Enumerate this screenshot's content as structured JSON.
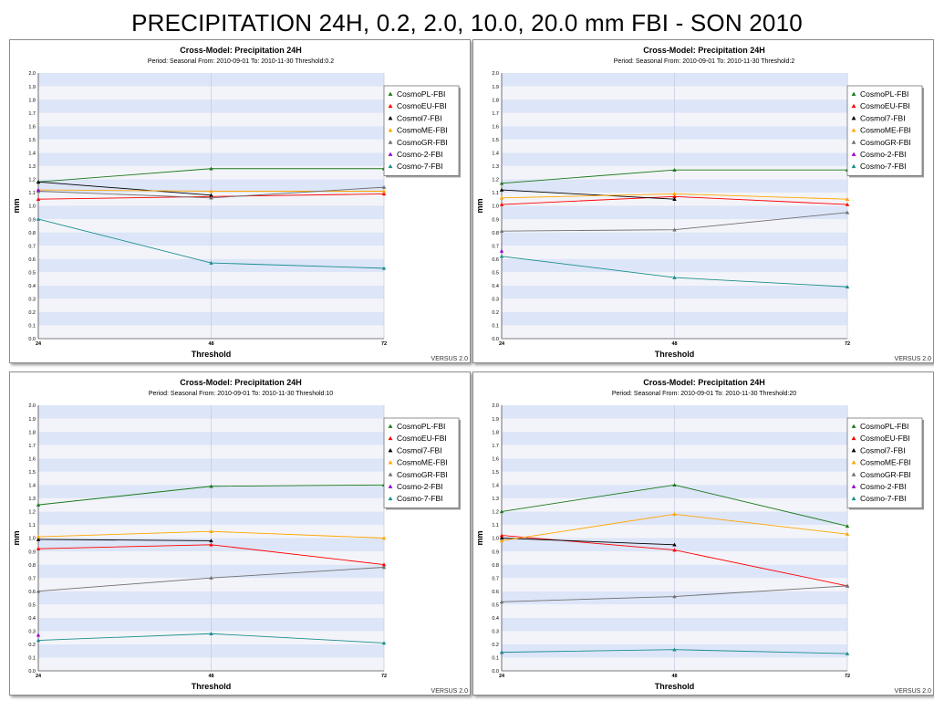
{
  "page": {
    "title": "PRECIPITATION 24H, 0.2, 2.0, 10.0, 20.0 mm FBI - SON 2010"
  },
  "series_styles": [
    {
      "name": "CosmoPL-FBI",
      "color": "#1a7a1a"
    },
    {
      "name": "CosmoEU-FBI",
      "color": "#ff0000"
    },
    {
      "name": "Cosmol7-FBI",
      "color": "#000000"
    },
    {
      "name": "CosmoME-FBI",
      "color": "#ffa500"
    },
    {
      "name": "CosmoGR-FBI",
      "color": "#707070"
    },
    {
      "name": "Cosmo-2-FBI",
      "color": "#9900cc"
    },
    {
      "name": "Cosmo-7-FBI",
      "color": "#1a8f8f"
    }
  ],
  "chart_data": [
    {
      "type": "line",
      "title": "Cross-Model: Precipitation 24H",
      "subtitle": "Period: Seasonal From: 2010-09-01   To: 2010-11-30 Threshold:0.2",
      "xlabel": "Threshold",
      "ylabel": "mm",
      "watermark": "VERSUS 2.0",
      "x": [
        24,
        48,
        72
      ],
      "xlim": [
        24,
        72
      ],
      "ylim": [
        0.0,
        2.0
      ],
      "ytick_step": 0.1,
      "grid": true,
      "legend_position": "top-right",
      "series": [
        {
          "name": "CosmoPL-FBI",
          "values": [
            1.18,
            1.28,
            1.28
          ]
        },
        {
          "name": "CosmoEU-FBI",
          "values": [
            1.05,
            1.07,
            1.09
          ]
        },
        {
          "name": "Cosmol7-FBI",
          "values": [
            1.18,
            1.08,
            null
          ]
        },
        {
          "name": "CosmoME-FBI",
          "values": [
            1.12,
            1.11,
            1.11
          ]
        },
        {
          "name": "CosmoGR-FBI",
          "values": [
            1.11,
            1.06,
            1.14
          ]
        },
        {
          "name": "Cosmo-2-FBI",
          "values": [
            1.12,
            null,
            null
          ]
        },
        {
          "name": "Cosmo-7-FBI",
          "values": [
            0.9,
            0.57,
            0.53
          ]
        }
      ]
    },
    {
      "type": "line",
      "title": "Cross-Model: Precipitation 24H",
      "subtitle": "Period: Seasonal From: 2010-09-01   To: 2010-11-30 Threshold:2",
      "xlabel": "Threshold",
      "ylabel": "mm",
      "watermark": "VERSUS 2.0",
      "x": [
        24,
        48,
        72
      ],
      "xlim": [
        24,
        72
      ],
      "ylim": [
        0.0,
        2.0
      ],
      "ytick_step": 0.1,
      "grid": true,
      "legend_position": "top-right",
      "series": [
        {
          "name": "CosmoPL-FBI",
          "values": [
            1.17,
            1.27,
            1.27
          ]
        },
        {
          "name": "CosmoEU-FBI",
          "values": [
            1.01,
            1.07,
            1.01
          ]
        },
        {
          "name": "Cosmol7-FBI",
          "values": [
            1.12,
            1.05,
            null
          ]
        },
        {
          "name": "CosmoME-FBI",
          "values": [
            1.06,
            1.09,
            1.05
          ]
        },
        {
          "name": "CosmoGR-FBI",
          "values": [
            0.81,
            0.82,
            0.95
          ]
        },
        {
          "name": "Cosmo-2-FBI",
          "values": [
            0.66,
            null,
            null
          ]
        },
        {
          "name": "Cosmo-7-FBI",
          "values": [
            0.62,
            0.46,
            0.39
          ]
        }
      ]
    },
    {
      "type": "line",
      "title": "Cross-Model: Precipitation 24H",
      "subtitle": "Period: Seasonal From: 2010-09-01   To: 2010-11-30 Threshold:10",
      "xlabel": "Threshold",
      "ylabel": "mm",
      "watermark": "VERSUS 2.0",
      "x": [
        24,
        48,
        72
      ],
      "xlim": [
        24,
        72
      ],
      "ylim": [
        0.0,
        2.0
      ],
      "ytick_step": 0.1,
      "grid": true,
      "legend_position": "top-right",
      "series": [
        {
          "name": "CosmoPL-FBI",
          "values": [
            1.25,
            1.39,
            1.4
          ]
        },
        {
          "name": "CosmoEU-FBI",
          "values": [
            0.92,
            0.95,
            0.8
          ]
        },
        {
          "name": "Cosmol7-FBI",
          "values": [
            0.99,
            0.98,
            null
          ]
        },
        {
          "name": "CosmoME-FBI",
          "values": [
            1.01,
            1.05,
            1.0
          ]
        },
        {
          "name": "CosmoGR-FBI",
          "values": [
            0.6,
            0.7,
            0.78
          ]
        },
        {
          "name": "Cosmo-2-FBI",
          "values": [
            0.27,
            null,
            null
          ]
        },
        {
          "name": "Cosmo-7-FBI",
          "values": [
            0.23,
            0.28,
            0.21
          ]
        }
      ]
    },
    {
      "type": "line",
      "title": "Cross-Model: Precipitation 24H",
      "subtitle": "Period: Seasonal From: 2010-09-01   To: 2010-11-30 Threshold:20",
      "xlabel": "Threshold",
      "ylabel": "mm",
      "watermark": "VERSUS 2.0",
      "x": [
        24,
        48,
        72
      ],
      "xlim": [
        24,
        72
      ],
      "ylim": [
        0.0,
        2.0
      ],
      "ytick_step": 0.1,
      "grid": true,
      "legend_position": "top-right",
      "series": [
        {
          "name": "CosmoPL-FBI",
          "values": [
            1.2,
            1.4,
            1.09
          ]
        },
        {
          "name": "CosmoEU-FBI",
          "values": [
            1.02,
            0.91,
            0.64
          ]
        },
        {
          "name": "Cosmol7-FBI",
          "values": [
            1.0,
            0.95,
            null
          ]
        },
        {
          "name": "CosmoME-FBI",
          "values": [
            0.98,
            1.18,
            1.03
          ]
        },
        {
          "name": "CosmoGR-FBI",
          "values": [
            0.52,
            0.56,
            0.64
          ]
        },
        {
          "name": "Cosmo-2-FBI",
          "values": [
            0.14,
            null,
            null
          ]
        },
        {
          "name": "Cosmo-7-FBI",
          "values": [
            0.14,
            0.16,
            0.13
          ]
        }
      ]
    }
  ]
}
